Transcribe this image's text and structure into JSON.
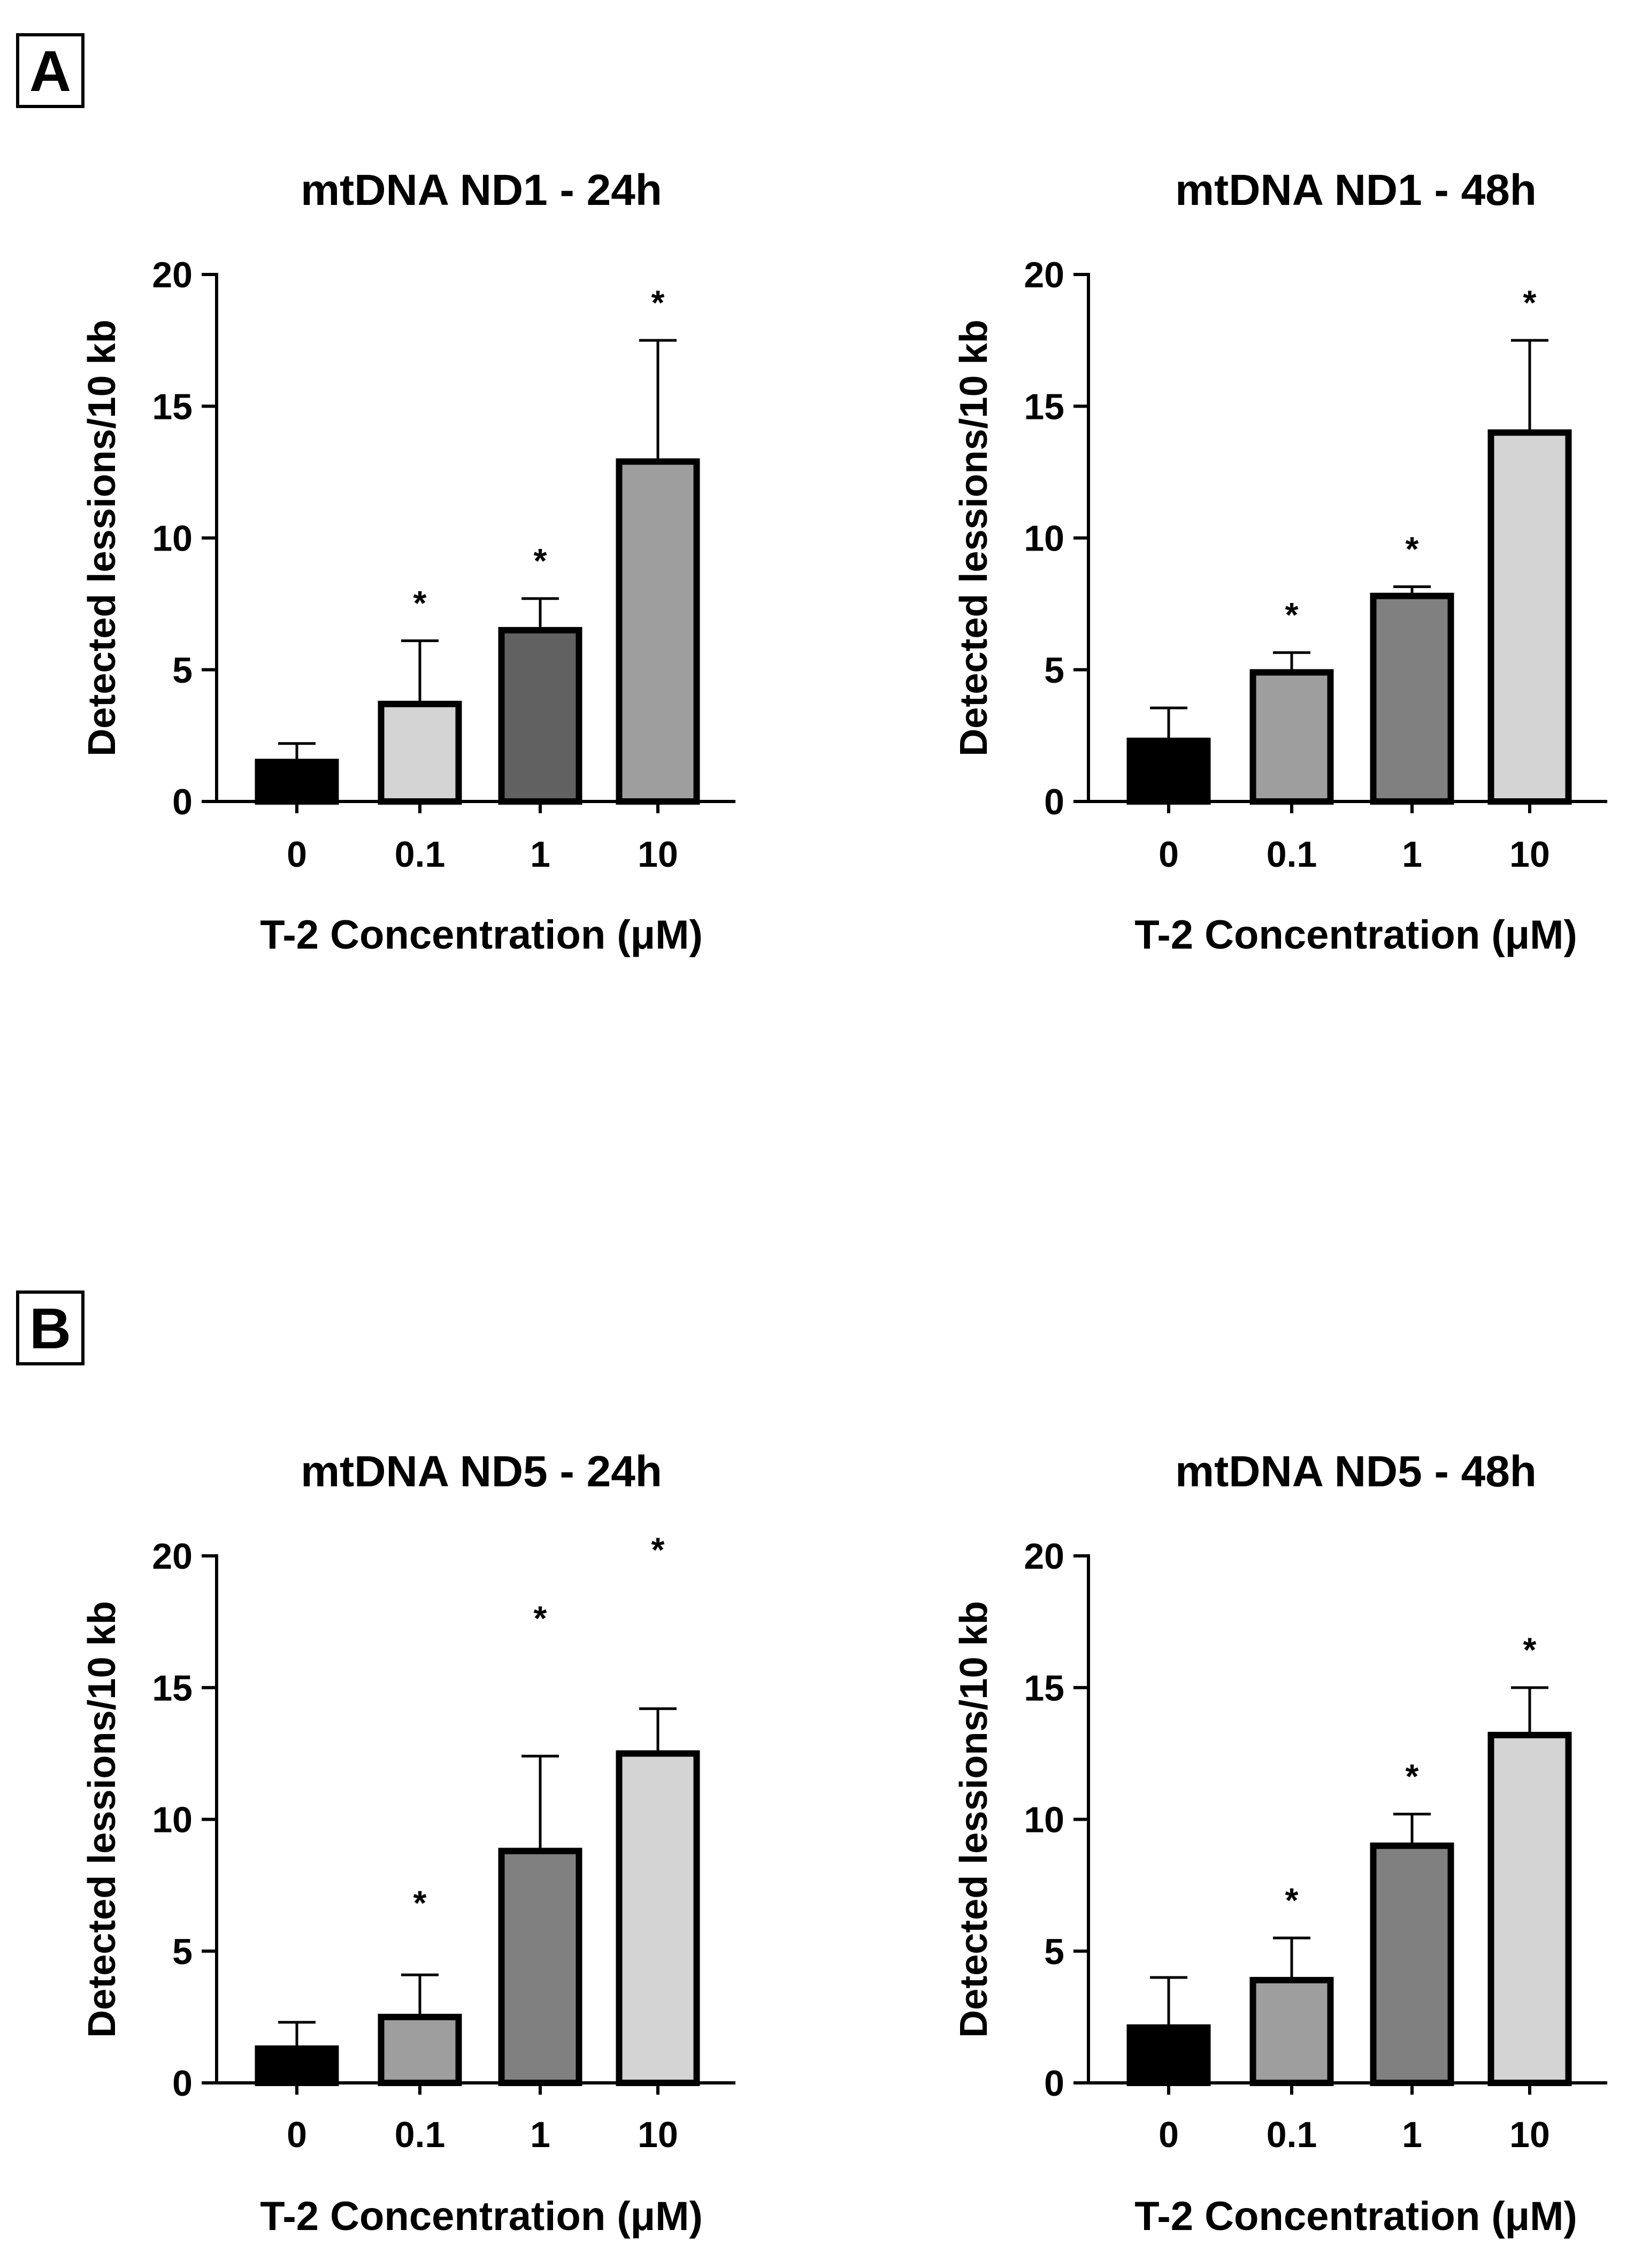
{
  "panels": [
    {
      "label": "A"
    },
    {
      "label": "B"
    }
  ],
  "chart_data": [
    {
      "type": "bar",
      "panel": "A",
      "title": "mtDNA ND1 - 24h",
      "xlabel": "T-2 Concentration (μM)",
      "ylabel": "Detected lessions/10 kb",
      "categories": [
        "0",
        "0.1",
        "1",
        "10"
      ],
      "values": [
        1.5,
        3.7,
        6.5,
        12.9
      ],
      "errors": [
        0.7,
        2.4,
        1.2,
        4.6
      ],
      "significance": [
        "",
        "*",
        "*",
        "*"
      ],
      "bar_colors": [
        "#000000",
        "#d4d4d4",
        "#616161",
        "#9e9e9e"
      ],
      "ylim": [
        0,
        20
      ],
      "yticks": [
        "0",
        "5",
        "10",
        "15",
        "20"
      ]
    },
    {
      "type": "bar",
      "panel": "A",
      "title": "mtDNA ND1 - 48h",
      "xlabel": "T-2 Concentration (μM)",
      "ylabel": "Detected lessions/10 kb",
      "categories": [
        "0",
        "0.1",
        "1",
        "10"
      ],
      "values": [
        2.3,
        4.9,
        7.8,
        14.0
      ],
      "errors": [
        1.25,
        0.75,
        0.35,
        3.5
      ],
      "significance": [
        "",
        "*",
        "*",
        "*"
      ],
      "bar_colors": [
        "#000000",
        "#9e9e9e",
        "#808080",
        "#d4d4d4"
      ],
      "ylim": [
        0,
        20
      ],
      "yticks": [
        "0",
        "5",
        "10",
        "15",
        "20"
      ]
    },
    {
      "type": "bar",
      "panel": "B",
      "title": "mtDNA ND5 - 24h",
      "xlabel": "T-2 Concentration (μM)",
      "ylabel": "Detected lessions/10 kb",
      "categories": [
        "0",
        "0.1",
        "1",
        "10"
      ],
      "values": [
        1.3,
        2.5,
        8.8,
        12.5
      ],
      "errors": [
        1.0,
        1.6,
        3.6,
        1.7
      ],
      "significance": [
        "",
        "*",
        "*",
        "*"
      ],
      "star_positions": [
        null,
        7.0,
        17.8,
        20.4
      ],
      "bar_colors": [
        "#000000",
        "#9e9e9e",
        "#808080",
        "#d4d4d4"
      ],
      "ylim": [
        0,
        20
      ],
      "yticks": [
        "0",
        "5",
        "10",
        "15",
        "20"
      ]
    },
    {
      "type": "bar",
      "panel": "B",
      "title": "mtDNA ND5 - 48h",
      "xlabel": "T-2 Concentration (μM)",
      "ylabel": "Detected lessions/10 kb",
      "categories": [
        "0",
        "0.1",
        "1",
        "10"
      ],
      "values": [
        2.1,
        3.9,
        9.0,
        13.2
      ],
      "errors": [
        1.9,
        1.6,
        1.2,
        1.8
      ],
      "significance": [
        "",
        "*",
        "*",
        "*"
      ],
      "bar_colors": [
        "#000000",
        "#9e9e9e",
        "#808080",
        "#d4d4d4"
      ],
      "ylim": [
        0,
        20
      ],
      "yticks": [
        "0",
        "5",
        "10",
        "15",
        "20"
      ]
    }
  ]
}
